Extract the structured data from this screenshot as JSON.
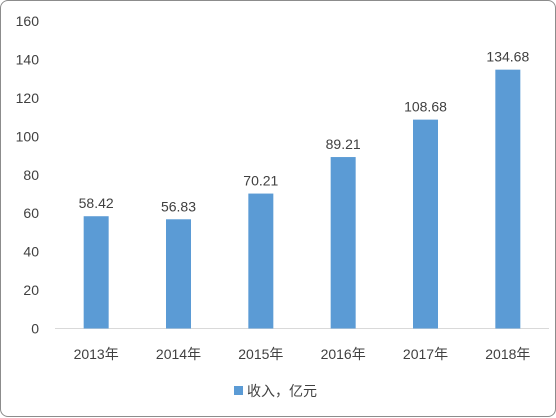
{
  "chart_data": {
    "type": "bar",
    "categories": [
      "2013年",
      "2014年",
      "2015年",
      "2016年",
      "2017年",
      "2018年"
    ],
    "series": [
      {
        "name": "收入，亿元",
        "values": [
          58.42,
          56.83,
          70.21,
          89.21,
          108.68,
          134.68
        ]
      }
    ],
    "data_labels": [
      "58.42",
      "56.83",
      "70.21",
      "89.21",
      "108.68",
      "134.68"
    ],
    "y_ticks": [
      "0",
      "20",
      "40",
      "60",
      "80",
      "100",
      "120",
      "140",
      "160"
    ],
    "ylim": [
      0,
      160
    ],
    "grid": false,
    "legend_position": "bottom",
    "bar_color": "#5b9bd5",
    "axis_color": "#d9d9d9"
  }
}
